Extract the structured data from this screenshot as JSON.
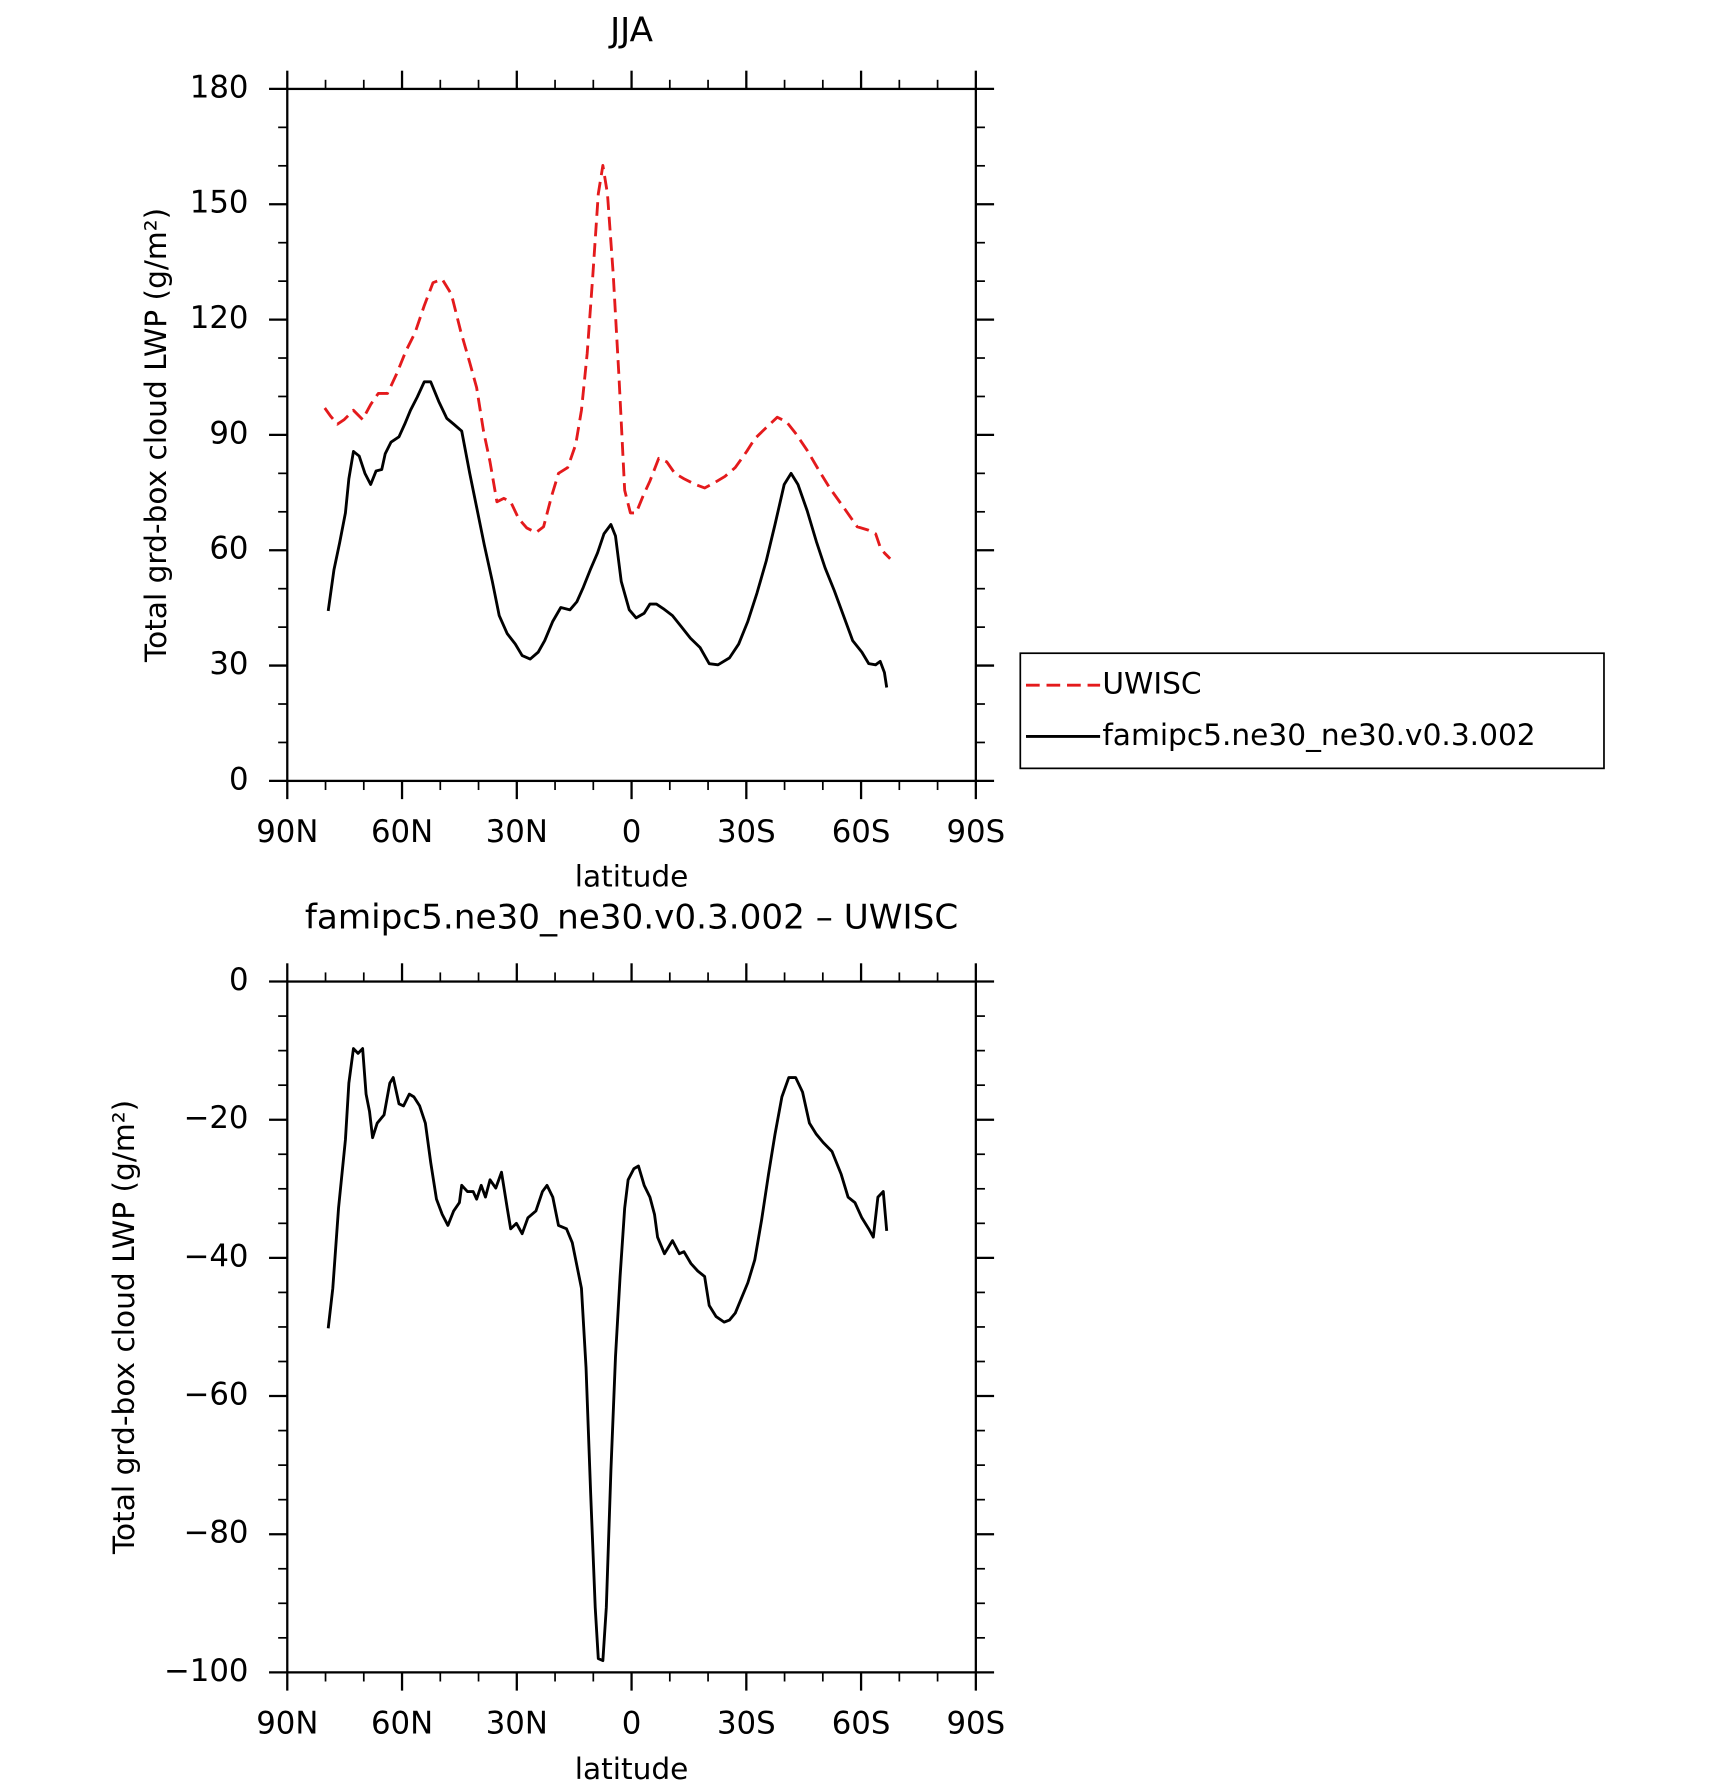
{
  "chart_data": [
    {
      "type": "line",
      "title": "JJA",
      "x_label": "latitude",
      "y_label": "Total grd-box cloud LWP (g/m²)",
      "xlim": [
        90,
        -90
      ],
      "xticks": [
        {
          "value": 90,
          "label": "90N"
        },
        {
          "value": 60,
          "label": "60N"
        },
        {
          "value": 30,
          "label": "30N"
        },
        0,
        {
          "value": -30,
          "label": "30S"
        },
        {
          "value": -60,
          "label": "60S"
        },
        {
          "value": -90,
          "label": "90S"
        }
      ],
      "ylim": [
        0,
        180
      ],
      "yticks": [
        0,
        30,
        60,
        90,
        120,
        150,
        180
      ],
      "legend": "right",
      "series": [
        {
          "name": "UWISC",
          "color": "#e41a1c",
          "line_style": "dashed",
          "x": [
            80.2,
            78.7,
            76.9,
            75.1,
            72.7,
            70.3,
            68.2,
            66.2,
            63.8,
            61.4,
            59,
            56.6,
            54.2,
            51.9,
            49.5,
            47.1,
            44.7,
            42.3,
            40.5,
            38.7,
            37,
            35.2,
            33.4,
            31.6,
            29.5,
            27.4,
            25,
            23,
            20.9,
            19.1,
            16.7,
            14.6,
            13.1,
            11.6,
            10.1,
            8.7,
            7.5,
            6.3,
            4.8,
            3.3,
            1.8,
            0.3,
            -1.2,
            -3,
            -4.8,
            -7.1,
            -9.2,
            -11.3,
            -13.7,
            -16.7,
            -19.1,
            -21.4,
            -24.4,
            -27.1,
            -30.1,
            -32.2,
            -35.2,
            -38.1,
            -40.5,
            -42.9,
            -45.9,
            -48.9,
            -51.8,
            -55.4,
            -59,
            -62,
            -63.8,
            -65,
            -66.1,
            -67.6
          ],
          "values": [
            97,
            94.9,
            92.8,
            94,
            96.4,
            94,
            97.9,
            100.8,
            100.8,
            105.9,
            111.8,
            116.6,
            123.6,
            129.6,
            130.5,
            126.6,
            117.1,
            108.8,
            102.3,
            91,
            83,
            72.6,
            73.5,
            72.6,
            68.2,
            65.8,
            64.6,
            66.1,
            74.1,
            80,
            81.5,
            87.5,
            96.4,
            111.2,
            131.9,
            152.7,
            160.1,
            152.7,
            131.9,
            105.3,
            75.6,
            69.7,
            69.7,
            74.1,
            78,
            83.9,
            83,
            80,
            78.6,
            77.1,
            76.2,
            77.4,
            79.2,
            81.5,
            85.7,
            89,
            91.9,
            94.6,
            93.4,
            90.4,
            86,
            80.9,
            76.2,
            71.2,
            66.1,
            65.2,
            64.3,
            60.8,
            59.3,
            57.8
          ]
        },
        {
          "name": "famipc5.ne30_ne30.v0.3.002",
          "color": "#000000",
          "line_style": "solid",
          "x": [
            79.3,
            77.8,
            76.3,
            74.8,
            73.9,
            72.7,
            71.2,
            69.7,
            68.2,
            66.8,
            65.3,
            64.4,
            62.9,
            60.8,
            59.3,
            57.8,
            56,
            54.2,
            52.5,
            50.4,
            48.3,
            46.5,
            44.4,
            42.3,
            40.5,
            38.5,
            36.4,
            34.6,
            32.5,
            30.4,
            28.6,
            26.5,
            24.4,
            22.7,
            20.6,
            18.5,
            16.1,
            14.3,
            12.6,
            10.8,
            8.9,
            7.2,
            5.4,
            4.2,
            2.7,
            0.6,
            -1.2,
            -3.3,
            -4.8,
            -6.5,
            -8.3,
            -10.7,
            -13.1,
            -15.4,
            -17.9,
            -20.3,
            -22.6,
            -25.6,
            -28,
            -30.4,
            -32.8,
            -35.2,
            -37.5,
            -39.9,
            -41.7,
            -43.5,
            -45.9,
            -48.3,
            -50.6,
            -53,
            -55.4,
            -57.8,
            -60.2,
            -62,
            -63.8,
            -65,
            -66.1,
            -66.7
          ],
          "values": [
            44.2,
            54.9,
            62,
            69.7,
            78.6,
            85.7,
            84.5,
            80,
            77.1,
            80.6,
            81,
            85.1,
            88.1,
            89.5,
            92.8,
            96.4,
            99.9,
            103.8,
            103.8,
            98.7,
            94.3,
            92.8,
            91,
            80,
            71.2,
            61.4,
            51.9,
            43,
            38.3,
            35.6,
            32.6,
            31.7,
            33.5,
            36.5,
            41.5,
            45.1,
            44.5,
            46.6,
            50.4,
            54.9,
            59.3,
            64.3,
            66.7,
            63.7,
            51.9,
            44.5,
            42.4,
            43.6,
            46,
            46,
            44.8,
            43,
            40,
            37.1,
            34.7,
            30.5,
            30.2,
            32,
            35.6,
            41.5,
            48.9,
            57.2,
            66.7,
            77.1,
            80,
            77.1,
            70.3,
            62.3,
            55.4,
            49.5,
            43,
            36.5,
            33.5,
            30.5,
            30.2,
            31.1,
            28.2,
            24.3
          ]
        }
      ]
    },
    {
      "type": "line",
      "title": "famipc5.ne30_ne30.v0.3.002 – UWISC",
      "x_label": "latitude",
      "y_label": "Total grd-box cloud LWP (g/m²)",
      "xlim": [
        90,
        -90
      ],
      "xticks": [
        {
          "value": 90,
          "label": "90N"
        },
        {
          "value": 60,
          "label": "60N"
        },
        {
          "value": 30,
          "label": "30N"
        },
        0,
        {
          "value": -30,
          "label": "30S"
        },
        {
          "value": -60,
          "label": "60S"
        },
        {
          "value": -90,
          "label": "90S"
        }
      ],
      "ylim": [
        -100,
        0
      ],
      "yticks": [
        {
          "value": -100,
          "label": "−100"
        },
        {
          "value": -80,
          "label": "−80"
        },
        {
          "value": -60,
          "label": "−60"
        },
        {
          "value": -40,
          "label": "−40"
        },
        {
          "value": -20,
          "label": "−20"
        },
        0
      ],
      "series": [
        {
          "color": "#000000",
          "line_style": "solid",
          "x": [
            79.3,
            78.1,
            76.6,
            74.8,
            73.9,
            72.7,
            71.5,
            70.3,
            69.4,
            68.5,
            67.7,
            66.5,
            64.7,
            63.2,
            62.3,
            60.8,
            59.6,
            58.1,
            56.9,
            55.4,
            53.9,
            52.5,
            51,
            49.5,
            48,
            46.5,
            45,
            44.4,
            42.9,
            41.4,
            40.5,
            39.3,
            38.2,
            37,
            35.5,
            34,
            32.5,
            31.6,
            30.1,
            28.6,
            27.1,
            25,
            23.3,
            22.1,
            20.6,
            19.1,
            17,
            15.5,
            14.3,
            13.1,
            11.9,
            10.7,
            9.5,
            8.7,
            7.5,
            6.6,
            5.4,
            4.2,
            3,
            1.8,
            0.9,
            -0.6,
            -1.8,
            -3.3,
            -4.8,
            -6,
            -6.8,
            -8.6,
            -10.7,
            -12.5,
            -13.7,
            -15.5,
            -17.3,
            -19.1,
            -20.3,
            -22.1,
            -24.2,
            -25.6,
            -27.1,
            -28.6,
            -30.4,
            -32.2,
            -34,
            -35.8,
            -37.5,
            -39.3,
            -41.1,
            -42.9,
            -44.7,
            -46.5,
            -48.3,
            -50.1,
            -52.4,
            -54.8,
            -56.6,
            -58.4,
            -60.2,
            -62,
            -63.2,
            -64.4,
            -65.8,
            -66.7
          ],
          "values": [
            -50.2,
            -44.4,
            -32.8,
            -22.9,
            -14.7,
            -9.7,
            -10.4,
            -9.7,
            -16.3,
            -18.8,
            -22.6,
            -20.5,
            -19.3,
            -14.7,
            -13.9,
            -17.7,
            -18,
            -16.3,
            -16.7,
            -18,
            -20.5,
            -26.2,
            -31.5,
            -33.7,
            -35.3,
            -33.2,
            -32,
            -29.5,
            -30.4,
            -30.4,
            -31.5,
            -29.5,
            -31.2,
            -28.7,
            -29.9,
            -27.6,
            -32.8,
            -35.8,
            -35,
            -36.5,
            -34.2,
            -33.2,
            -30.4,
            -29.5,
            -31.2,
            -35.3,
            -35.8,
            -37.8,
            -41.1,
            -44.4,
            -55.9,
            -74,
            -90.6,
            -98,
            -98.3,
            -90.6,
            -70.8,
            -54.3,
            -42.7,
            -32.8,
            -28.7,
            -27.1,
            -26.7,
            -29.5,
            -31.2,
            -33.7,
            -37,
            -39.4,
            -37.5,
            -39.4,
            -39.1,
            -40.8,
            -41.9,
            -42.7,
            -46.9,
            -48.5,
            -49.3,
            -49,
            -48,
            -46,
            -43.6,
            -40.3,
            -34.5,
            -27.9,
            -22.1,
            -16.7,
            -13.9,
            -13.9,
            -16,
            -20.5,
            -22.1,
            -23.3,
            -24.6,
            -27.9,
            -31.2,
            -32,
            -34.2,
            -35.8,
            -37,
            -31.2,
            -30.4,
            -36.1
          ]
        }
      ]
    }
  ]
}
